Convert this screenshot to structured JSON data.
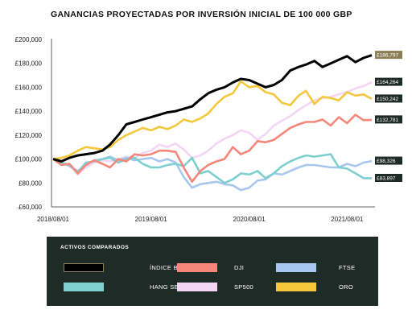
{
  "chart_data": {
    "type": "line",
    "title": "GANANCIAS PROYECTADAS POR INVERSIÓN INICIAL DE 100 000 GBP",
    "xlabel": "",
    "ylabel": "",
    "x_ticks": [
      "2018/08/01",
      "2019/08/01",
      "2020/08/01",
      "2021/08/01"
    ],
    "y_ticks": [
      "£60,000",
      "£80,000",
      "£100,000",
      "£120,000",
      "£140,000",
      "£160,000",
      "£180,000",
      "£200,000"
    ],
    "ylim": [
      60000,
      200000
    ],
    "grid": false,
    "legend_title": "ACTIVOS COMPARADOS",
    "x_dates": [
      "2018/08/01",
      "2018/09/01",
      "2018/10/01",
      "2018/11/01",
      "2018/12/01",
      "2019/01/01",
      "2019/02/01",
      "2019/03/01",
      "2019/04/01",
      "2019/05/01",
      "2019/06/01",
      "2019/07/01",
      "2019/08/01",
      "2019/09/01",
      "2019/10/01",
      "2019/11/01",
      "2019/12/01",
      "2020/01/01",
      "2020/02/01",
      "2020/03/01",
      "2020/04/01",
      "2020/05/01",
      "2020/06/01",
      "2020/07/01",
      "2020/08/01",
      "2020/09/01",
      "2020/10/01",
      "2020/11/01",
      "2020/12/01",
      "2021/01/01",
      "2021/02/01",
      "2021/03/01",
      "2021/04/01",
      "2021/05/01",
      "2021/06/01",
      "2021/07/01",
      "2021/08/01",
      "2021/09/01",
      "2021/10/01",
      "2021/11/01"
    ],
    "series": [
      {
        "name": "ÍNDICE BC20",
        "color": "#000000",
        "end_label": "£186,797",
        "values": [
          100000,
          98000,
          101000,
          103000,
          104000,
          105000,
          107000,
          112000,
          120000,
          129000,
          131000,
          133000,
          135000,
          137000,
          139000,
          140000,
          142000,
          144000,
          150000,
          155000,
          158000,
          160000,
          164000,
          167000,
          166000,
          163000,
          160000,
          162000,
          166000,
          174000,
          177000,
          179000,
          182000,
          177000,
          180000,
          183000,
          186000,
          181000,
          184500,
          186797
        ]
      },
      {
        "name": "HANG SENG",
        "color": "#7ecfcf",
        "end_label": "£83,897",
        "values": [
          100000,
          97000,
          95000,
          89000,
          97000,
          98000,
          100000,
          101000,
          97000,
          100000,
          101000,
          96000,
          93000,
          93000,
          95000,
          96000,
          94000,
          101000,
          88000,
          90000,
          85000,
          80000,
          83000,
          88000,
          87000,
          90000,
          84000,
          88000,
          94000,
          98000,
          101000,
          103000,
          102000,
          103000,
          104000,
          93000,
          92000,
          88000,
          84000,
          83897
        ]
      },
      {
        "name": "DJI",
        "color": "#f4877a",
        "end_label": "£132,781",
        "values": [
          100000,
          95000,
          96000,
          88000,
          95000,
          99000,
          96000,
          93000,
          100000,
          98000,
          104000,
          103000,
          104000,
          107000,
          107000,
          106000,
          93000,
          81000,
          90000,
          95000,
          98000,
          100000,
          110000,
          104000,
          107000,
          115000,
          114000,
          116000,
          121000,
          126000,
          129000,
          131000,
          131000,
          133000,
          128000,
          135000,
          130000,
          137000,
          132500,
          132781
        ]
      },
      {
        "name": "SP500",
        "color": "#f2d6f4",
        "end_label": "£164,264",
        "values": [
          100000,
          97000,
          95000,
          87000,
          93000,
          97000,
          99000,
          98000,
          100000,
          102000,
          101000,
          105000,
          107000,
          112000,
          110000,
          113000,
          108000,
          101000,
          103000,
          107000,
          113000,
          117000,
          120000,
          124000,
          122000,
          116000,
          121000,
          128000,
          132000,
          136000,
          141000,
          145000,
          149000,
          151000,
          152000,
          154000,
          156000,
          159000,
          161000,
          164264
        ]
      },
      {
        "name": "FTSE",
        "color": "#a8c7ee",
        "end_label": "£98,326",
        "values": [
          100000,
          97000,
          94000,
          90000,
          95000,
          99000,
          100000,
          102000,
          99000,
          101000,
          99000,
          100000,
          101000,
          98000,
          100000,
          97000,
          85000,
          76000,
          79000,
          80000,
          81000,
          79000,
          78000,
          74000,
          76000,
          82000,
          83000,
          88000,
          87000,
          90000,
          93000,
          95000,
          95000,
          94000,
          93000,
          93000,
          96000,
          94000,
          97000,
          98326
        ]
      },
      {
        "name": "ORO",
        "color": "#f5c73b",
        "end_label": "£150,242",
        "values": [
          100000,
          101000,
          103000,
          107000,
          110000,
          109000,
          108000,
          110000,
          116000,
          120000,
          123000,
          126000,
          124000,
          127000,
          125000,
          128000,
          133000,
          131000,
          134000,
          138000,
          146000,
          152000,
          155000,
          165000,
          160000,
          161000,
          156000,
          154000,
          147000,
          145000,
          153000,
          157000,
          146000,
          152000,
          151000,
          149000,
          156000,
          153000,
          154000,
          150242
        ]
      }
    ],
    "legend_order": [
      "ÍNDICE BC20",
      "DJI",
      "FTSE",
      "HANG SENG",
      "SP500",
      "ORO"
    ]
  }
}
